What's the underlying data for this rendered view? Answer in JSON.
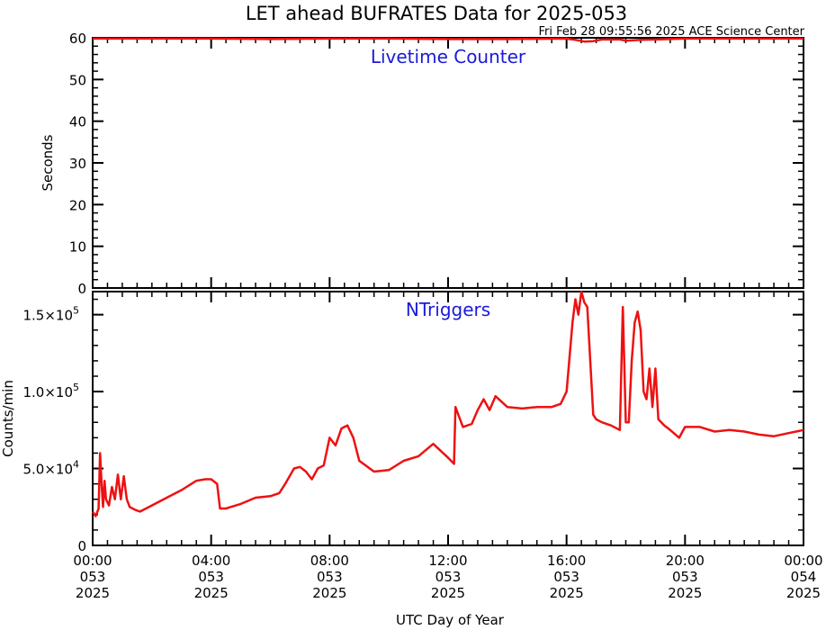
{
  "chart_data": {
    "title": "LET ahead BUFRATES Data for 2025-053",
    "timestamp": "Fri Feb 28 09:55:56 2025 ACE Science Center",
    "xlabel": "UTC Day of Year",
    "line_color": "#ee1111",
    "label_color": "#1a1adb",
    "x_ticks": [
      {
        "time": "00:00",
        "doy": "053",
        "year": "2025"
      },
      {
        "time": "04:00",
        "doy": "053",
        "year": "2025"
      },
      {
        "time": "08:00",
        "doy": "053",
        "year": "2025"
      },
      {
        "time": "12:00",
        "doy": "053",
        "year": "2025"
      },
      {
        "time": "16:00",
        "doy": "053",
        "year": "2025"
      },
      {
        "time": "20:00",
        "doy": "053",
        "year": "2025"
      },
      {
        "time": "00:00",
        "doy": "054",
        "year": "2025"
      }
    ],
    "xlim_hours": [
      0,
      24
    ],
    "panels": [
      {
        "type": "line",
        "label": "Livetime Counter",
        "ylabel": "Seconds",
        "ylim": [
          0,
          60
        ],
        "y_ticks": [
          "0",
          "10",
          "20",
          "30",
          "40",
          "50",
          "60"
        ],
        "series": [
          {
            "x": [
              0,
              2,
              4,
              6,
              8,
              10,
              12,
              14,
              16,
              16.3,
              16.6,
              16.9,
              17.2,
              17.8,
              18.0,
              18.5,
              19.0,
              20,
              22,
              24
            ],
            "y": [
              59.8,
              59.8,
              59.8,
              59.7,
              59.8,
              59.8,
              59.7,
              59.7,
              59.8,
              59.5,
              59.1,
              59.2,
              59.6,
              59.6,
              59.3,
              59.5,
              59.6,
              59.8,
              59.8,
              59.8
            ]
          }
        ]
      },
      {
        "type": "line",
        "label": "NTriggers",
        "ylabel": "Counts/min",
        "ylim": [
          0,
          165000
        ],
        "y_ticks": [
          {
            "value": 0,
            "mant": "0",
            "exp": ""
          },
          {
            "value": 50000,
            "mant": "5.0×10",
            "exp": "4"
          },
          {
            "value": 100000,
            "mant": "1.0×10",
            "exp": "5"
          },
          {
            "value": 150000,
            "mant": "1.5×10",
            "exp": "5"
          }
        ],
        "series": [
          {
            "x": [
              0.0,
              0.1,
              0.2,
              0.25,
              0.3,
              0.35,
              0.4,
              0.45,
              0.55,
              0.65,
              0.75,
              0.85,
              0.95,
              1.05,
              1.15,
              1.25,
              1.35,
              1.45,
              1.6,
              1.8,
              2.0,
              2.5,
              3.0,
              3.5,
              3.8,
              4.0,
              4.2,
              4.3,
              4.5,
              5.0,
              5.5,
              6.0,
              6.3,
              6.5,
              6.8,
              7.0,
              7.2,
              7.4,
              7.6,
              7.8,
              8.0,
              8.2,
              8.4,
              8.6,
              8.8,
              9.0,
              9.5,
              10.0,
              10.5,
              11.0,
              11.5,
              12.0,
              12.2,
              12.25,
              12.5,
              12.8,
              13.0,
              13.2,
              13.4,
              13.6,
              14.0,
              14.5,
              15.0,
              15.5,
              15.8,
              16.0,
              16.2,
              16.3,
              16.4,
              16.5,
              16.6,
              16.7,
              16.8,
              16.9,
              17.0,
              17.2,
              17.5,
              17.8,
              17.9,
              18.0,
              18.1,
              18.2,
              18.3,
              18.4,
              18.5,
              18.6,
              18.7,
              18.8,
              18.9,
              19.0,
              19.1,
              19.3,
              19.5,
              19.8,
              20.0,
              20.5,
              21.0,
              21.5,
              22.0,
              22.5,
              23.0,
              23.5,
              24.0
            ],
            "y": [
              22000,
              19000,
              24000,
              60000,
              40000,
              25000,
              42000,
              30000,
              26000,
              38000,
              30000,
              46000,
              30000,
              45000,
              30000,
              25000,
              24000,
              23000,
              22000,
              24000,
              26000,
              31000,
              36000,
              42000,
              43000,
              43000,
              40000,
              24000,
              24000,
              27000,
              31000,
              32000,
              34000,
              40000,
              50000,
              51000,
              48000,
              43000,
              50000,
              52000,
              70000,
              65000,
              76000,
              78000,
              70000,
              55000,
              48000,
              49000,
              55000,
              58000,
              66000,
              57000,
              53000,
              90000,
              77000,
              79000,
              88000,
              95000,
              88000,
              97000,
              90000,
              89000,
              90000,
              90000,
              92000,
              100000,
              145000,
              160000,
              150000,
              165000,
              158000,
              155000,
              120000,
              85000,
              82000,
              80000,
              78000,
              75000,
              155000,
              80000,
              80000,
              120000,
              145000,
              152000,
              140000,
              100000,
              95000,
              115000,
              90000,
              115000,
              82000,
              78000,
              75000,
              70000,
              77000,
              77000,
              74000,
              75000,
              74000,
              72000,
              71000,
              73000,
              75000
            ]
          }
        ]
      }
    ]
  }
}
